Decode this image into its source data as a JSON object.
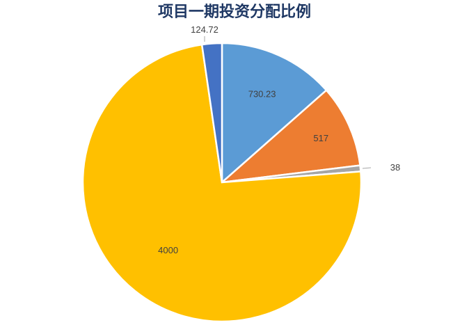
{
  "chart_data": {
    "type": "pie",
    "title": "项目一期投资分配比例",
    "values": [
      730.23,
      517,
      38,
      4000,
      124.72
    ],
    "labels": [
      "730.23",
      "517",
      "38",
      "4000",
      "124.72"
    ],
    "colors": [
      "#5b9bd5",
      "#ed7d31",
      "#a5a5a5",
      "#ffc000",
      "#4472c4"
    ],
    "start_angle": "12 o'clock",
    "direction": "clockwise",
    "legend": "none"
  }
}
